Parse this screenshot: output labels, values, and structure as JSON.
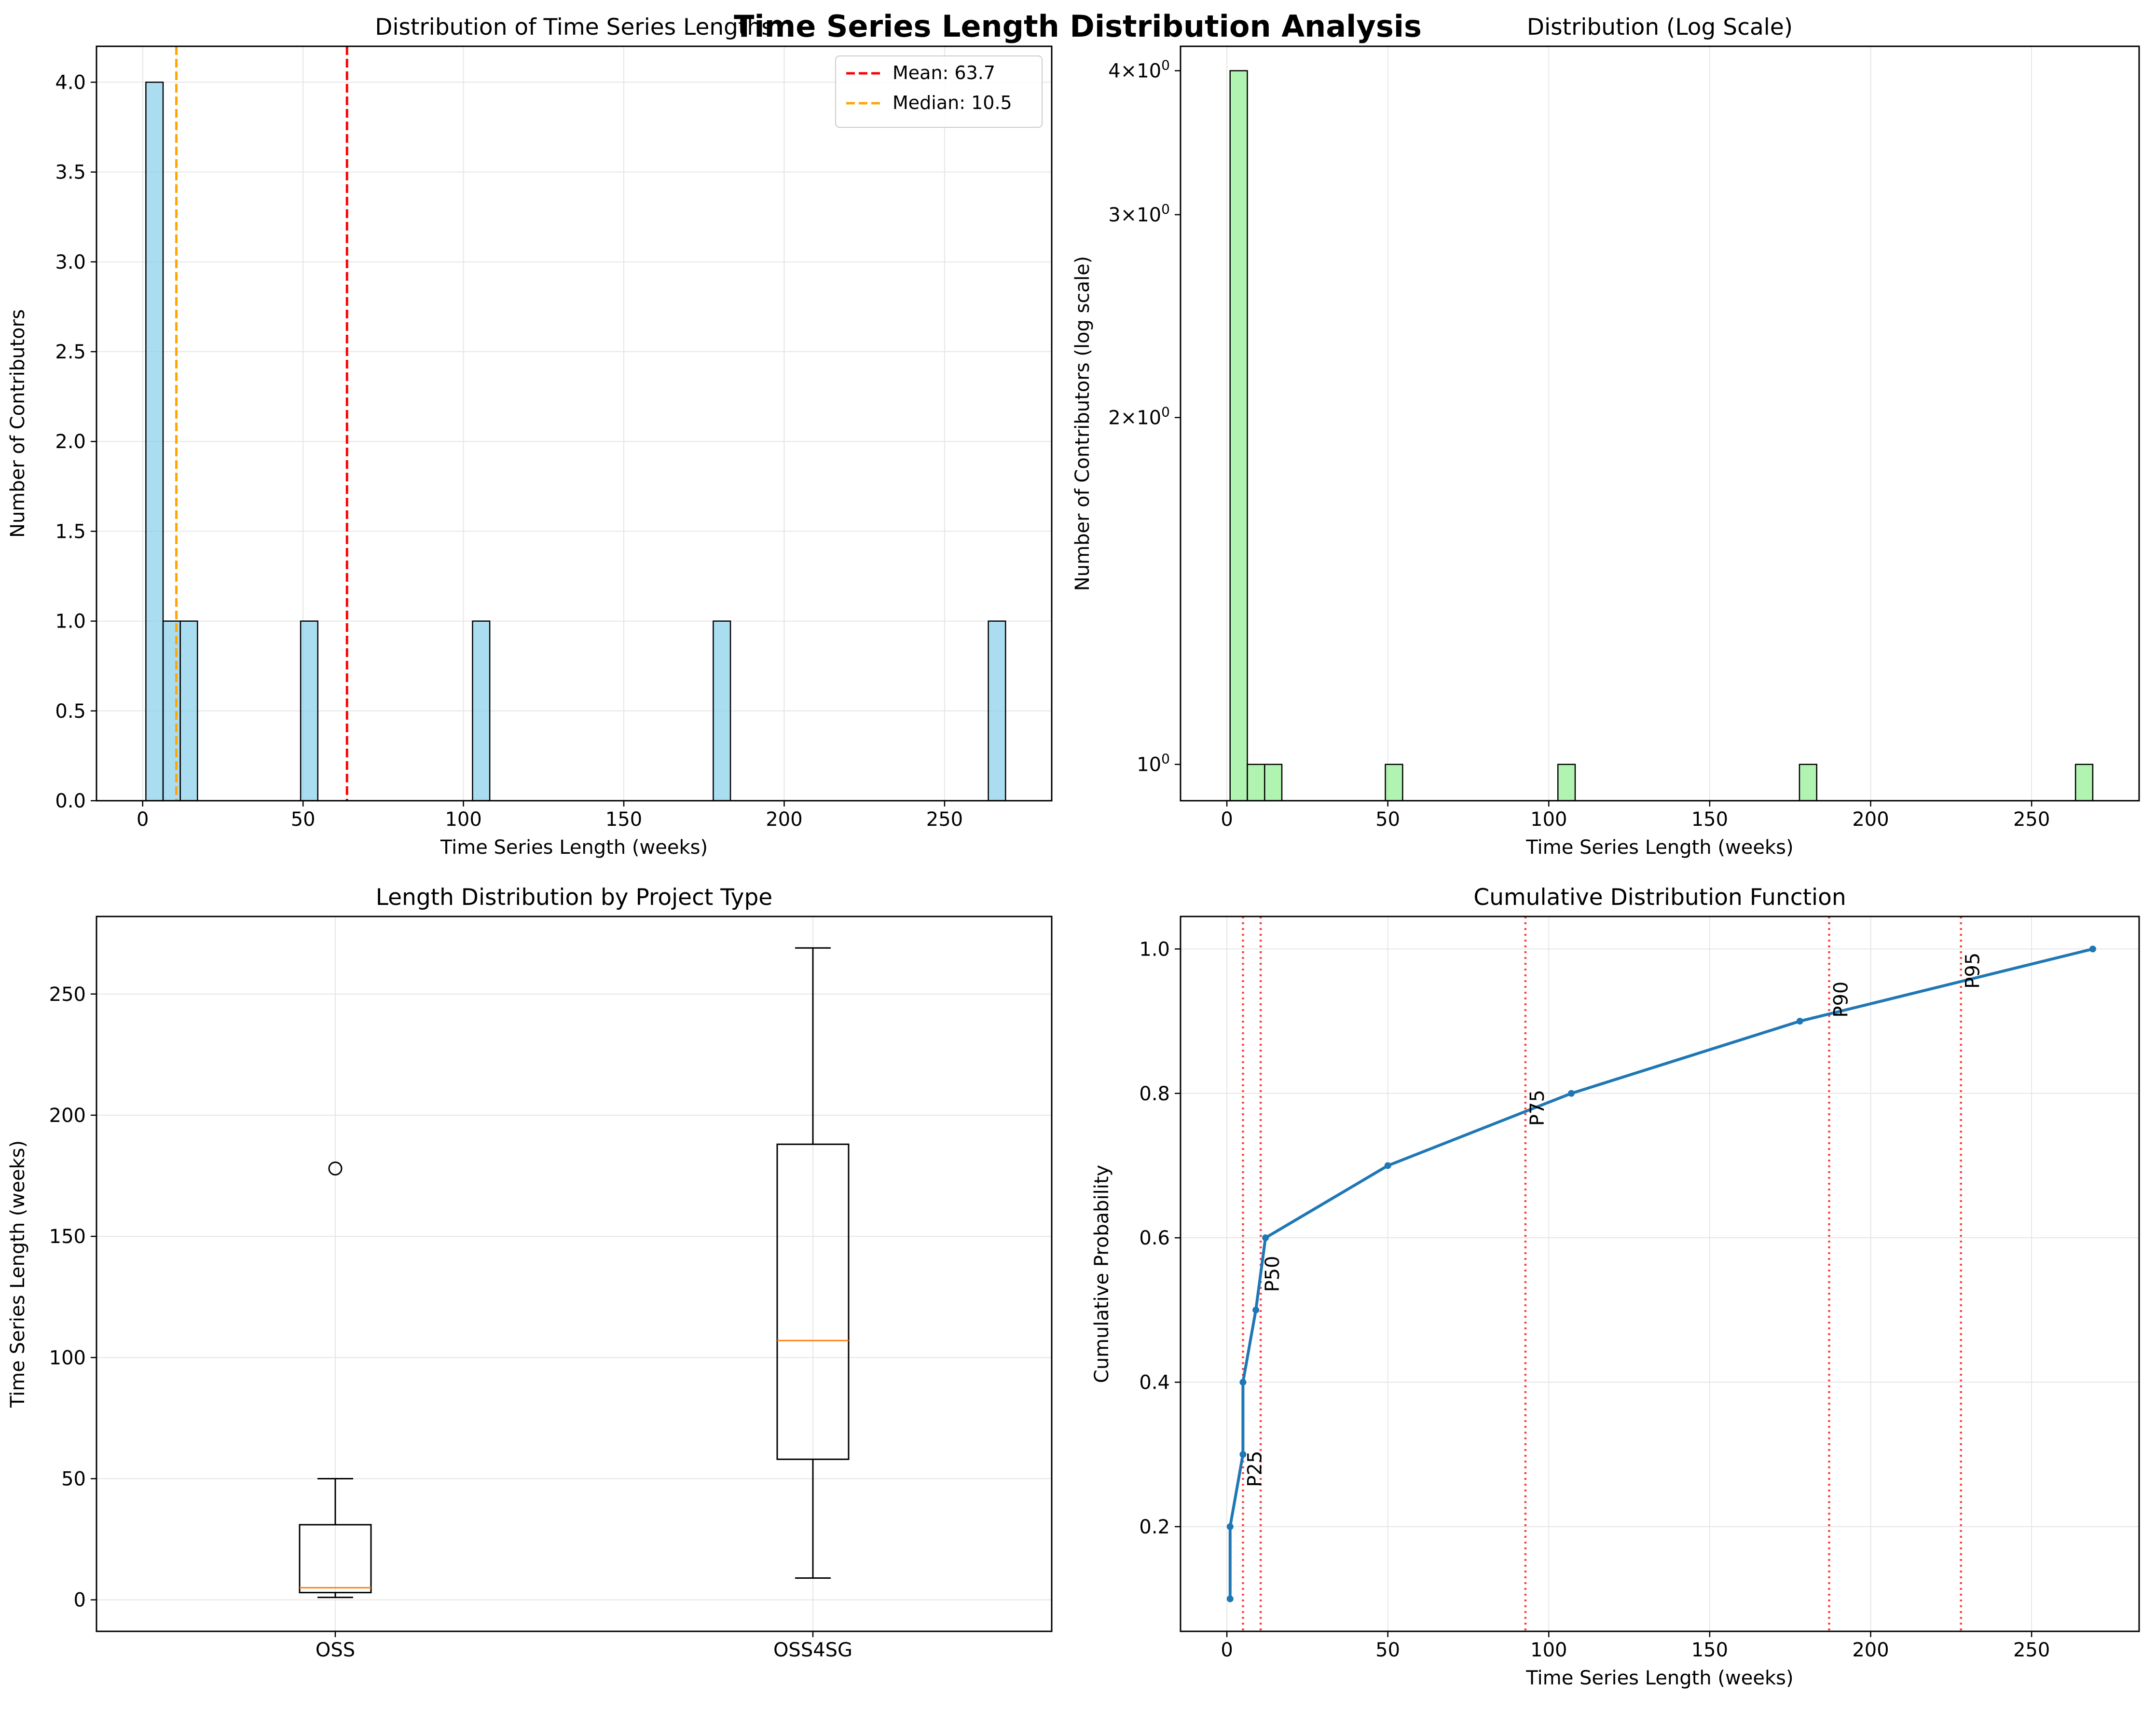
{
  "figure": {
    "title": "Time Series Length Distribution Analysis"
  },
  "colors": {
    "hist_fill": "#87CEEB",
    "log_hist_fill": "#90EE90",
    "mean_line": "#ff0000",
    "median_line": "#ffa500",
    "box_median": "#ff7f0e",
    "cdf_line": "#1f77b4",
    "percentile_line": "#ff0000",
    "grid": "#e6e6e6"
  },
  "chart_data": [
    {
      "type": "bar",
      "title": "Distribution of Time Series Lengths",
      "xlabel": "Time Series Length (weeks)",
      "ylabel": "Number of Contributors",
      "xlim": [
        -14.4,
        283.4
      ],
      "ylim": [
        0,
        4.2
      ],
      "xticks": [
        0,
        50,
        100,
        150,
        200,
        250
      ],
      "yticks": [
        0.0,
        0.5,
        1.0,
        1.5,
        2.0,
        2.5,
        3.0,
        3.5,
        4.0
      ],
      "ytick_labels": [
        "0.0",
        "0.5",
        "1.0",
        "1.5",
        "2.0",
        "2.5",
        "3.0",
        "3.5",
        "4.0"
      ],
      "bin_width": 5.36,
      "bins": [
        {
          "start": 1.0,
          "count": 4
        },
        {
          "start": 6.36,
          "count": 1
        },
        {
          "start": 11.72,
          "count": 1
        },
        {
          "start": 49.24,
          "count": 1
        },
        {
          "start": 102.84,
          "count": 1
        },
        {
          "start": 177.88,
          "count": 1
        },
        {
          "start": 263.64,
          "count": 1
        }
      ],
      "mean": 63.7,
      "median": 10.5,
      "legend": {
        "placement": "top-right",
        "entries": [
          {
            "label": "Mean: 63.7",
            "color": "#ff0000"
          },
          {
            "label": "Median: 10.5",
            "color": "#ffa500"
          }
        ]
      },
      "grid": true
    },
    {
      "type": "bar",
      "title": "Distribution (Log Scale)",
      "xlabel": "Time Series Length (weeks)",
      "ylabel": "Number of Contributors (log scale)",
      "yscale": "log",
      "xlim": [
        -14.4,
        283.4
      ],
      "ylim": [
        0.93,
        4.2
      ],
      "xticks": [
        0,
        50,
        100,
        150,
        200,
        250
      ],
      "yticks": [
        {
          "value": 1,
          "label": "10",
          "exp": "0"
        },
        {
          "value": 2,
          "label": "2×10",
          "exp": "0"
        },
        {
          "value": 3,
          "label": "3×10",
          "exp": "0"
        },
        {
          "value": 4,
          "label": "4×10",
          "exp": "0"
        }
      ],
      "bin_width": 5.36,
      "bins": [
        {
          "start": 1.0,
          "count": 4
        },
        {
          "start": 6.36,
          "count": 1
        },
        {
          "start": 11.72,
          "count": 1
        },
        {
          "start": 49.24,
          "count": 1
        },
        {
          "start": 102.84,
          "count": 1
        },
        {
          "start": 177.88,
          "count": 1
        },
        {
          "start": 263.64,
          "count": 1
        }
      ],
      "grid": true
    },
    {
      "type": "box",
      "title": "Length Distribution by Project Type",
      "xlabel": "",
      "ylabel": "Time Series Length (weeks)",
      "ylim": [
        -13,
        282
      ],
      "yticks": [
        0,
        50,
        100,
        150,
        200,
        250
      ],
      "categories": [
        "OSS",
        "OSS4SG"
      ],
      "boxes": [
        {
          "name": "OSS",
          "whisker_low": 1,
          "q1": 3,
          "median": 5,
          "q3": 31,
          "whisker_high": 50,
          "outliers": [
            178
          ]
        },
        {
          "name": "OSS4SG",
          "whisker_low": 9,
          "q1": 58,
          "median": 107,
          "q3": 188,
          "whisker_high": 269,
          "outliers": []
        }
      ],
      "grid": true
    },
    {
      "type": "line",
      "title": "Cumulative Distribution Function",
      "xlabel": "Time Series Length (weeks)",
      "ylabel": "Cumulative Probability",
      "xlim": [
        -14.4,
        283.4
      ],
      "ylim": [
        0.055,
        1.045
      ],
      "xticks": [
        0,
        50,
        100,
        150,
        200,
        250
      ],
      "yticks": [
        0.2,
        0.4,
        0.6,
        0.8,
        1.0
      ],
      "ytick_labels": [
        "0.2",
        "0.4",
        "0.6",
        "0.8",
        "1.0"
      ],
      "points": [
        {
          "x": 1,
          "y": 0.1
        },
        {
          "x": 1,
          "y": 0.2
        },
        {
          "x": 5,
          "y": 0.3
        },
        {
          "x": 5,
          "y": 0.4
        },
        {
          "x": 9,
          "y": 0.5
        },
        {
          "x": 12,
          "y": 0.6
        },
        {
          "x": 50,
          "y": 0.7
        },
        {
          "x": 107,
          "y": 0.8
        },
        {
          "x": 178,
          "y": 0.9
        },
        {
          "x": 269,
          "y": 1.0
        }
      ],
      "percentiles": [
        {
          "label": "P25",
          "x": 5,
          "label_y": 0.28
        },
        {
          "label": "P50",
          "x": 10.5,
          "label_y": 0.55
        },
        {
          "label": "P75",
          "x": 92.75,
          "label_y": 0.78
        },
        {
          "label": "P90",
          "x": 187.1,
          "label_y": 0.93
        },
        {
          "label": "P95",
          "x": 228.05,
          "label_y": 0.97
        }
      ],
      "grid": true
    }
  ]
}
